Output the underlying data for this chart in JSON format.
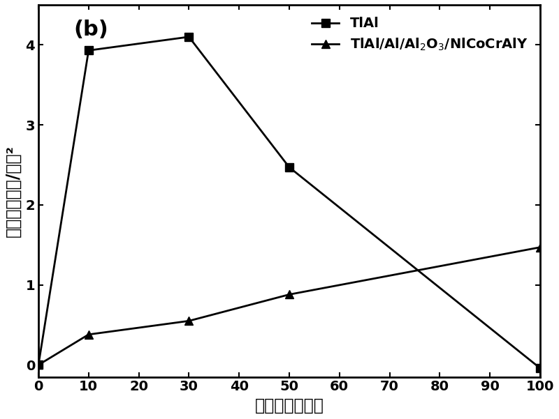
{
  "title": "(b)",
  "xlabel": "氧化时间，小时",
  "ylabel": "增重量，毫克/厘米²",
  "xlim": [
    0,
    100
  ],
  "ylim": [
    -0.15,
    4.5
  ],
  "xticks": [
    0,
    10,
    20,
    30,
    40,
    50,
    60,
    70,
    80,
    90,
    100
  ],
  "yticks": [
    0,
    1,
    2,
    3,
    4
  ],
  "series": [
    {
      "label": "TlAl",
      "x": [
        0,
        10,
        30,
        50,
        100
      ],
      "y": [
        0,
        3.93,
        4.1,
        2.47,
        -0.04
      ],
      "marker": "s",
      "color": "#000000",
      "linewidth": 2.0,
      "markersize": 8
    },
    {
      "label": "TlAl/Al/Al$_2$O$_3$/NlCoCrAlY",
      "x": [
        0,
        10,
        30,
        50,
        100
      ],
      "y": [
        0,
        0.38,
        0.55,
        0.88,
        1.47
      ],
      "marker": "^",
      "color": "#000000",
      "linewidth": 2.0,
      "markersize": 9
    }
  ],
  "background_color": "#ffffff",
  "title_fontsize": 22,
  "label_fontsize": 17,
  "tick_fontsize": 14,
  "legend_fontsize": 14
}
